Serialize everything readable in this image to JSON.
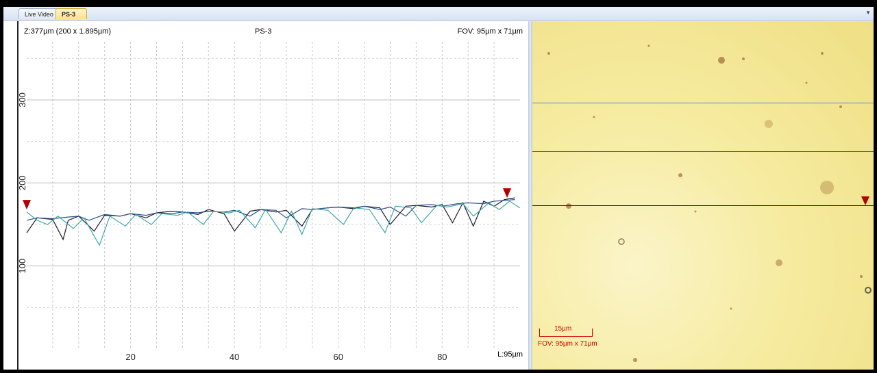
{
  "tabs": [
    {
      "label": "Live Video",
      "active": false
    },
    {
      "label": "PS-3",
      "active": true,
      "close": "x"
    }
  ],
  "plot": {
    "z_info": "Z:377µm (200 x 1.895µm)",
    "title": "PS-3",
    "fov": "FOV: 95µm x 71µm",
    "length": "L:95µm"
  },
  "image_panel": {
    "scale_label": "15µm",
    "fov": "FOV: 95µm x 71µm",
    "scan_line_colors": [
      "#3d8fd1",
      "#2a58b0",
      "#1a1a2e"
    ]
  },
  "chart_data": {
    "type": "line",
    "xlabel": "",
    "ylabel": "",
    "xlim": [
      0,
      95
    ],
    "ylim": [
      0,
      370
    ],
    "xticks": [
      20,
      40,
      60,
      80
    ],
    "yticks": [
      100,
      200,
      300
    ],
    "grid": true,
    "series": [
      {
        "color": "#1a1a2e",
        "x": [
          0,
          2,
          5,
          7,
          8,
          10,
          13,
          15,
          18,
          20,
          23,
          25,
          28,
          30,
          33,
          35,
          38,
          40,
          43,
          45,
          48,
          50,
          53,
          55,
          58,
          60,
          63,
          65,
          68,
          70,
          73,
          75,
          78,
          80,
          82,
          84,
          86,
          88,
          90,
          92,
          94
        ],
        "y": [
          140,
          158,
          156,
          132,
          155,
          160,
          142,
          161,
          160,
          163,
          158,
          164,
          166,
          165,
          162,
          168,
          163,
          142,
          166,
          168,
          165,
          167,
          148,
          168,
          170,
          171,
          169,
          172,
          170,
          150,
          172,
          173,
          171,
          174,
          152,
          176,
          148,
          178,
          172,
          180,
          182
        ]
      },
      {
        "color": "#2b4f8c",
        "x": [
          0,
          2,
          5,
          8,
          10,
          12,
          15,
          18,
          20,
          23,
          25,
          28,
          30,
          33,
          35,
          38,
          40,
          43,
          45,
          48,
          50,
          53,
          55,
          58,
          60,
          63,
          65,
          68,
          70,
          73,
          75,
          78,
          80,
          83,
          85,
          88,
          90,
          92,
          94
        ],
        "y": [
          155,
          158,
          157,
          159,
          160,
          155,
          162,
          160,
          163,
          161,
          164,
          163,
          165,
          164,
          166,
          165,
          167,
          160,
          168,
          167,
          158,
          169,
          168,
          170,
          171,
          170,
          172,
          168,
          171,
          160,
          173,
          174,
          172,
          175,
          176,
          175,
          178,
          179,
          180
        ]
      },
      {
        "color": "#3fa7a7",
        "x": [
          0,
          2,
          4,
          6,
          9,
          11,
          14,
          16,
          19,
          21,
          24,
          26,
          29,
          31,
          34,
          36,
          39,
          41,
          44,
          46,
          49,
          51,
          53,
          55,
          58,
          61,
          63,
          66,
          69,
          71,
          74,
          76,
          79,
          81,
          84,
          86,
          89,
          91,
          93,
          95
        ],
        "y": [
          165,
          155,
          150,
          160,
          145,
          158,
          125,
          160,
          148,
          162,
          150,
          163,
          161,
          165,
          150,
          166,
          164,
          167,
          146,
          168,
          140,
          166,
          138,
          169,
          167,
          150,
          170,
          168,
          140,
          172,
          170,
          152,
          173,
          171,
          175,
          160,
          176,
          168,
          178,
          170
        ]
      }
    ]
  }
}
